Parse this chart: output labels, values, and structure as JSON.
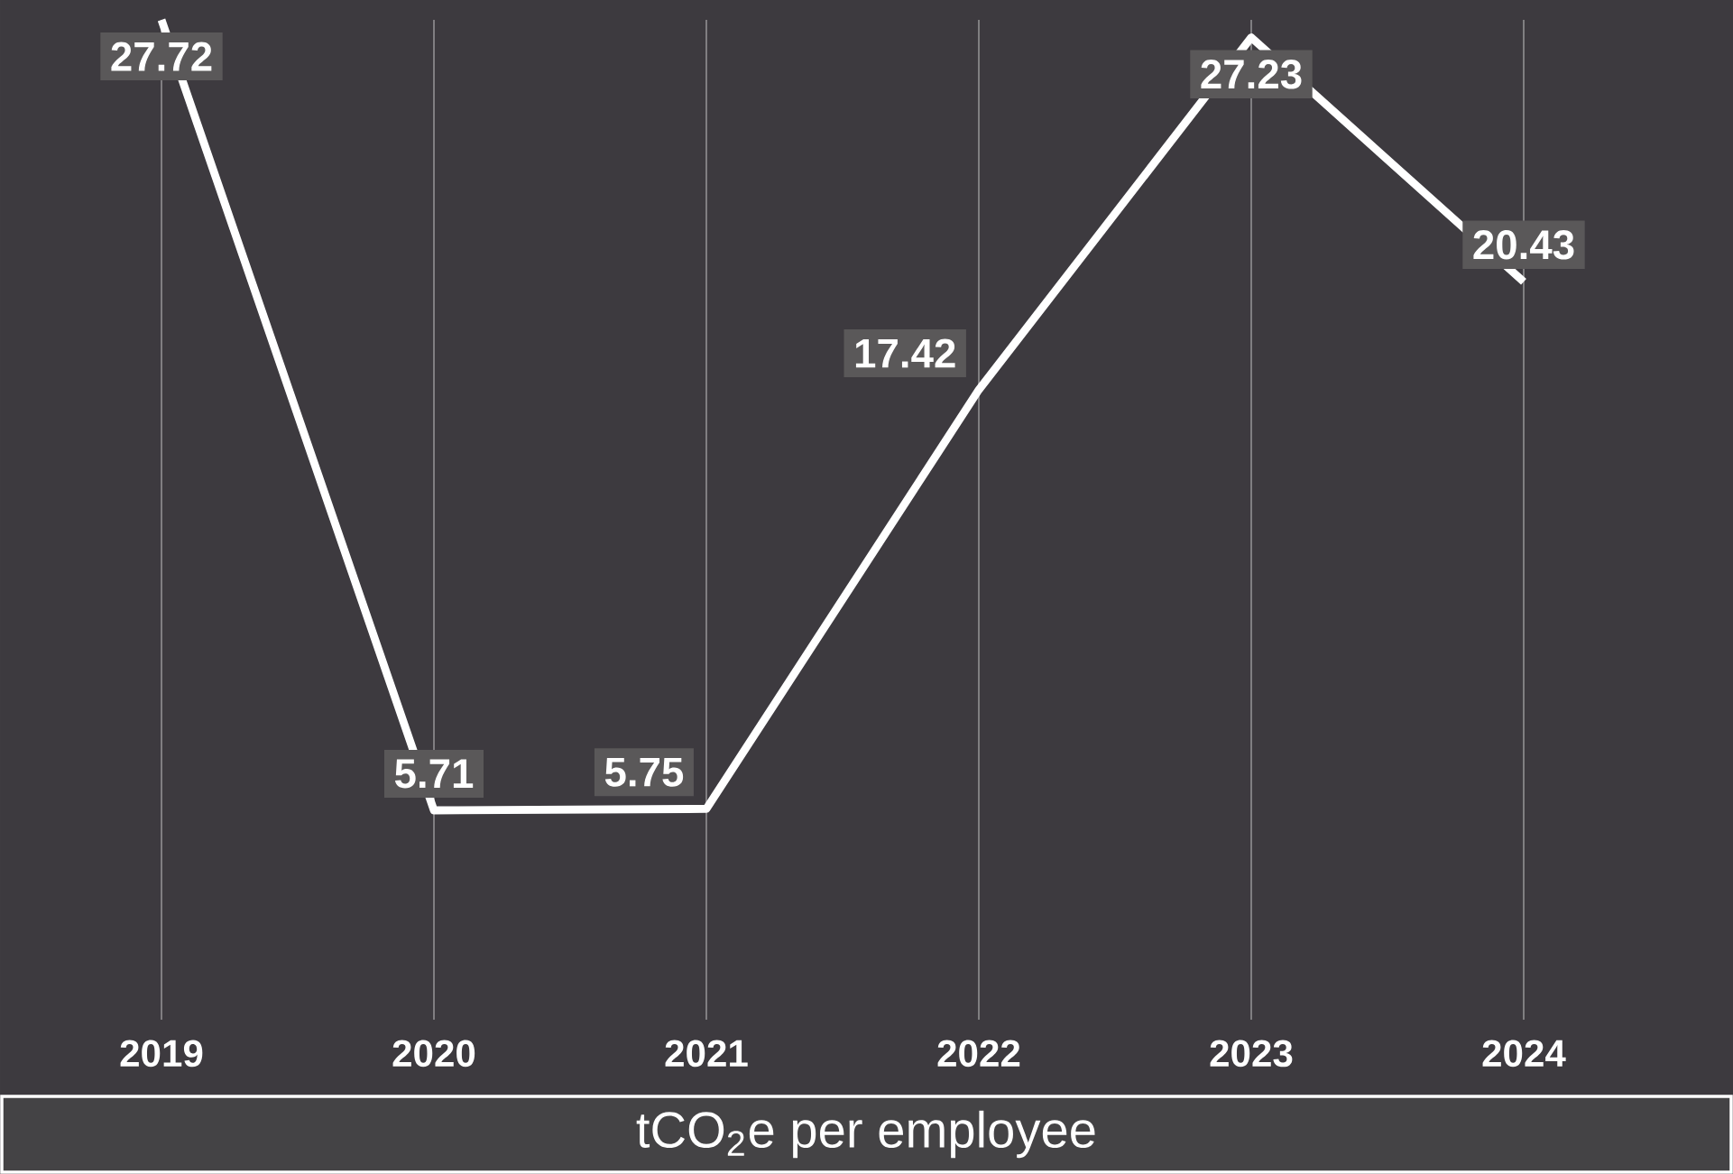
{
  "chart_data": {
    "type": "line",
    "xlabel": "tCO$_{2}$e per employee",
    "categories": [
      "2019",
      "2020",
      "2021",
      "2022",
      "2023",
      "2024"
    ],
    "values": [
      27.72,
      5.71,
      5.75,
      17.42,
      27.23,
      20.43
    ],
    "color": "#ffffff",
    "grid": "x",
    "data_labels": true
  }
}
